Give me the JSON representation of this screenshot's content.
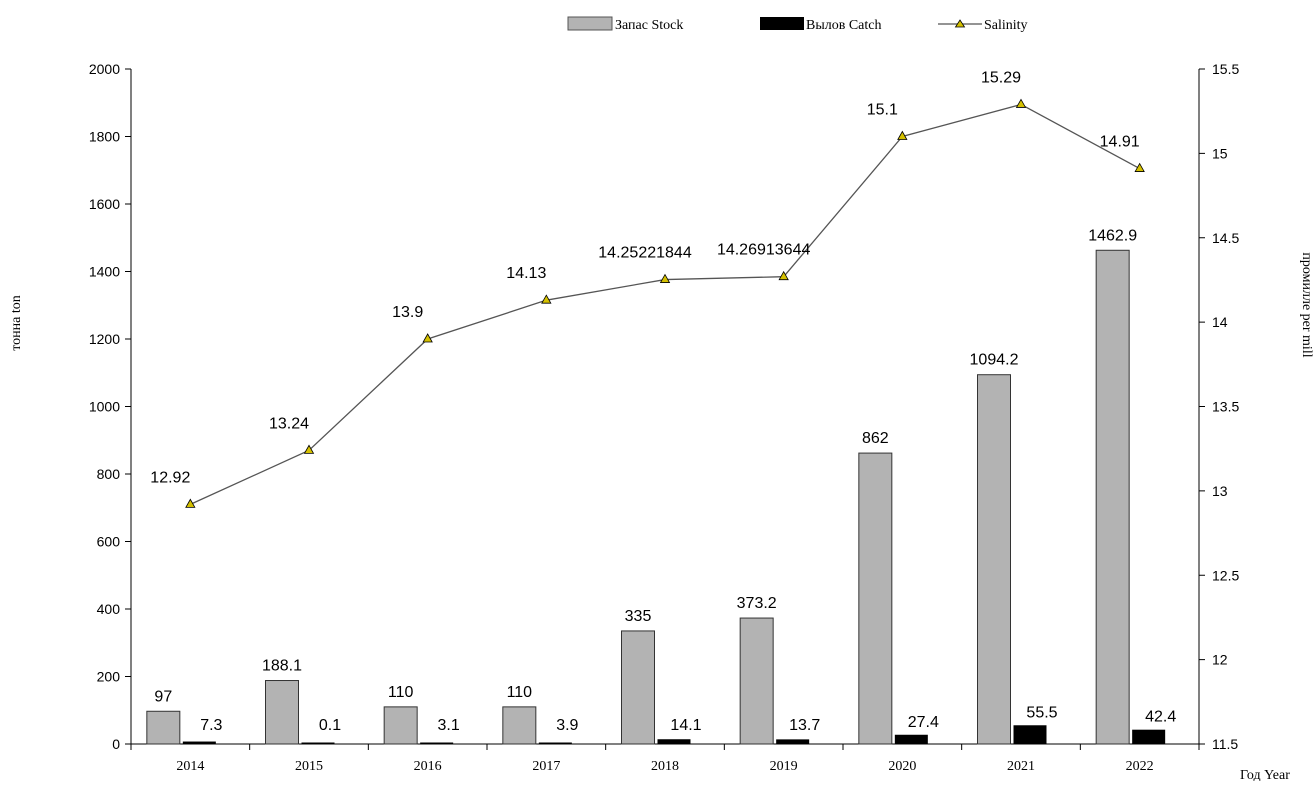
{
  "chart_data": {
    "type": "bar",
    "categories": [
      "2014",
      "2015",
      "2016",
      "2017",
      "2018",
      "2019",
      "2020",
      "2021",
      "2022"
    ],
    "series": [
      {
        "name": "Запас Stock",
        "type": "bar",
        "axis": "left",
        "color": "#b3b3b3",
        "values": [
          97,
          188.1,
          110,
          110,
          335,
          373.2,
          862,
          1094.2,
          1462.9
        ],
        "labels": [
          "97",
          "188.1",
          "110",
          "110",
          "335",
          "373.2",
          "862",
          "1094.2",
          "1462.9"
        ]
      },
      {
        "name": "Вылов Catch",
        "type": "bar",
        "axis": "left",
        "color": "#000000",
        "values": [
          7.3,
          0.1,
          3.1,
          3.9,
          14.1,
          13.7,
          27.4,
          55.5,
          42.4
        ],
        "labels": [
          "7.3",
          "0.1",
          "3.1",
          "3.9",
          "14.1",
          "13.7",
          "27.4",
          "55.5",
          "42.4"
        ]
      },
      {
        "name": "Salinity",
        "type": "line",
        "axis": "right",
        "color": "#555555",
        "marker_color": "#d4c000",
        "values": [
          12.92,
          13.24,
          13.9,
          14.13,
          14.25221844,
          14.26913644,
          15.1,
          15.29,
          14.91
        ],
        "labels": [
          "12.92",
          "13.24",
          "13.9",
          "14.13",
          "14.25221844",
          "14.26913644",
          "15.1",
          "15.29",
          "14.91"
        ]
      }
    ],
    "xlabel": "Год Year",
    "ylabel": "тонна ton",
    "y2label": "промилле per mill",
    "ylim": [
      0,
      2000
    ],
    "yticks": [
      "0",
      "200",
      "400",
      "600",
      "800",
      "1000",
      "1200",
      "1400",
      "1600",
      "1800",
      "2000"
    ],
    "y2lim": [
      11.5,
      15.5
    ],
    "y2ticks": [
      "11.5",
      "12",
      "12.5",
      "13",
      "13.5",
      "14",
      "14.5",
      "15",
      "15.5"
    ],
    "grid": false,
    "legend_position": "top-center"
  }
}
